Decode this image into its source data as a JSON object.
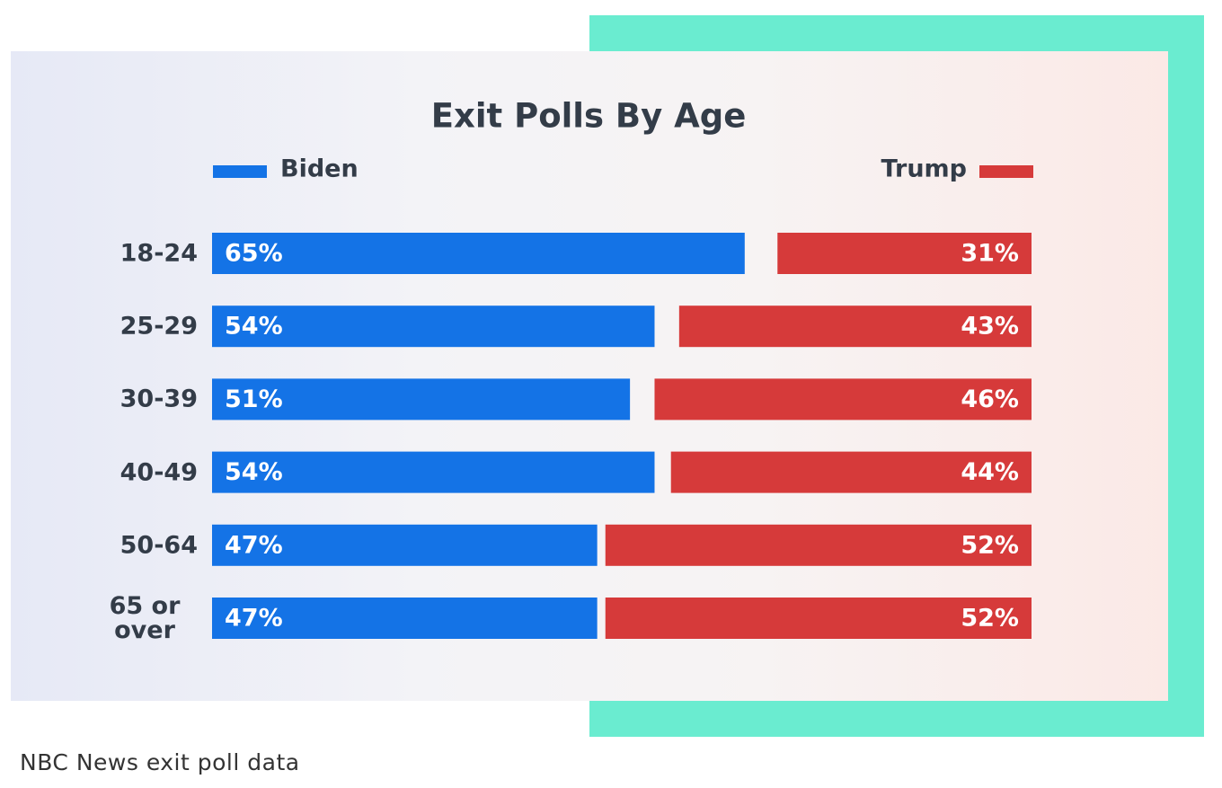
{
  "caption": "NBC News exit poll data",
  "chart_data": {
    "type": "diverging-bar",
    "title": "Exit Polls By Age",
    "categories": [
      "18-24",
      "25-29",
      "30-39",
      "40-49",
      "50-64",
      "65 or over"
    ],
    "xlim": [
      0,
      100
    ],
    "series": [
      {
        "name": "Biden",
        "color": "#1473e6",
        "values": [
          65,
          54,
          51,
          54,
          47,
          47
        ],
        "value_labels": [
          "65%",
          "54%",
          "51%",
          "54%",
          "47%",
          "47%"
        ]
      },
      {
        "name": "Trump",
        "color": "#d63a3a",
        "values": [
          31,
          43,
          46,
          44,
          52,
          52
        ],
        "value_labels": [
          "31%",
          "43%",
          "46%",
          "44%",
          "52%",
          "52%"
        ]
      }
    ]
  }
}
